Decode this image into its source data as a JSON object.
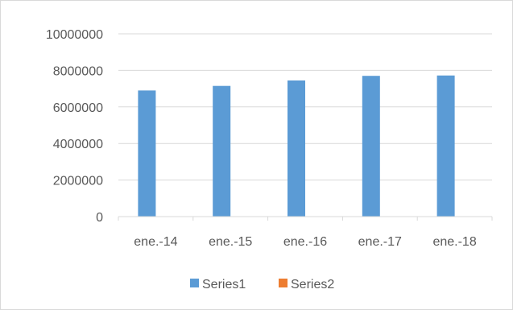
{
  "chart_data": {
    "type": "bar",
    "categories": [
      "ene.-14",
      "ene.-15",
      "ene.-16",
      "ene.-17",
      "ene.-18"
    ],
    "series": [
      {
        "name": "Series1",
        "color": "#5b9bd5",
        "values": [
          6900000,
          7150000,
          7450000,
          7700000,
          7720000
        ]
      },
      {
        "name": "Series2",
        "color": "#ed7d31",
        "values": [
          0,
          0,
          0,
          0,
          0
        ]
      }
    ],
    "ylim": [
      0,
      10000000
    ],
    "yticks": [
      0,
      2000000,
      4000000,
      6000000,
      8000000,
      10000000
    ],
    "ytick_labels": [
      "0",
      "2000000",
      "4000000",
      "6000000",
      "8000000",
      "10000000"
    ],
    "grid": true,
    "legend_position": "bottom"
  }
}
